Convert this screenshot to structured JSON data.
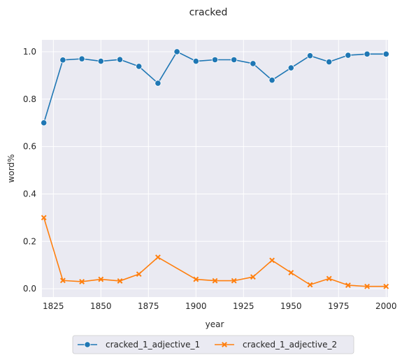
{
  "chart_data": {
    "type": "line",
    "title": "cracked",
    "xlabel": "year",
    "ylabel": "word%",
    "xlim": [
      1819,
      2001
    ],
    "ylim": [
      -0.035,
      1.05
    ],
    "xticks": [
      "1825",
      "1850",
      "1875",
      "1900",
      "1925",
      "1950",
      "1975",
      "2000"
    ],
    "yticks": [
      "0.0",
      "0.2",
      "0.4",
      "0.6",
      "0.8",
      "1.0"
    ],
    "grid": true,
    "legend_position": "bottom-center",
    "x": [
      1820,
      1830,
      1840,
      1850,
      1860,
      1870,
      1880,
      1890,
      1900,
      1910,
      1920,
      1930,
      1940,
      1950,
      1960,
      1970,
      1980,
      1990,
      2000
    ],
    "series": [
      {
        "name": "cracked_1_adjective_1",
        "marker": "circle",
        "color": "#1f77b4",
        "x": [
          1820,
          1830,
          1840,
          1850,
          1860,
          1870,
          1880,
          1890,
          1900,
          1910,
          1920,
          1930,
          1940,
          1950,
          1960,
          1970,
          1980,
          1990,
          2000
        ],
        "values": [
          0.7,
          0.965,
          0.97,
          0.96,
          0.967,
          0.938,
          0.867,
          1.0,
          0.96,
          0.966,
          0.966,
          0.95,
          0.88,
          0.932,
          0.983,
          0.957,
          0.985,
          0.99,
          0.99
        ]
      },
      {
        "name": "cracked_1_adjective_2",
        "marker": "x",
        "color": "#ff7f0e",
        "x": [
          1820,
          1830,
          1840,
          1850,
          1860,
          1870,
          1880,
          1900,
          1910,
          1920,
          1930,
          1940,
          1950,
          1960,
          1970,
          1980,
          1990,
          2000
        ],
        "values": [
          0.3,
          0.035,
          0.03,
          0.04,
          0.033,
          0.062,
          0.133,
          0.04,
          0.034,
          0.034,
          0.05,
          0.12,
          0.068,
          0.017,
          0.043,
          0.015,
          0.01,
          0.01
        ]
      }
    ]
  }
}
